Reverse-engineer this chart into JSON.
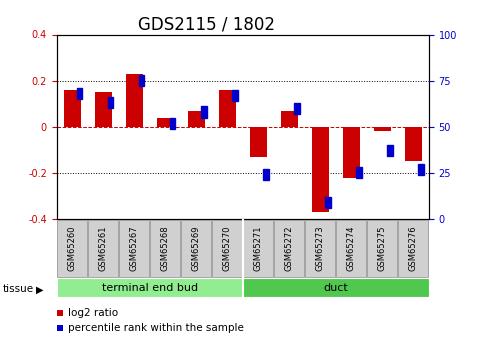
{
  "title": "GDS2115 / 1802",
  "samples": [
    "GSM65260",
    "GSM65261",
    "GSM65267",
    "GSM65268",
    "GSM65269",
    "GSM65270",
    "GSM65271",
    "GSM65272",
    "GSM65273",
    "GSM65274",
    "GSM65275",
    "GSM65276"
  ],
  "log2_ratio": [
    0.16,
    0.15,
    0.23,
    0.04,
    0.07,
    0.16,
    -0.13,
    0.07,
    -0.37,
    -0.22,
    -0.02,
    -0.15
  ],
  "percentile": [
    68,
    63,
    75,
    52,
    58,
    67,
    24,
    60,
    9,
    25,
    37,
    27
  ],
  "groups": [
    {
      "label": "terminal end bud",
      "start": 0,
      "end": 6,
      "color": "#90ee90"
    },
    {
      "label": "duct",
      "start": 6,
      "end": 12,
      "color": "#50c850"
    }
  ],
  "red_color": "#cc0000",
  "blue_color": "#0000cc",
  "ylim_left": [
    -0.4,
    0.4
  ],
  "ylim_right": [
    0,
    100
  ],
  "yticks_left": [
    -0.4,
    -0.2,
    0.0,
    0.2,
    0.4
  ],
  "yticks_right": [
    0,
    25,
    50,
    75,
    100
  ],
  "title_fontsize": 12,
  "tick_fontsize": 7,
  "tissue_label": "tissue",
  "legend_items": [
    {
      "label": "log2 ratio",
      "color": "#cc0000"
    },
    {
      "label": "percentile rank within the sample",
      "color": "#0000cc"
    }
  ],
  "group_label_fontsize": 8,
  "sample_fontsize": 6,
  "legend_fontsize": 7.5
}
